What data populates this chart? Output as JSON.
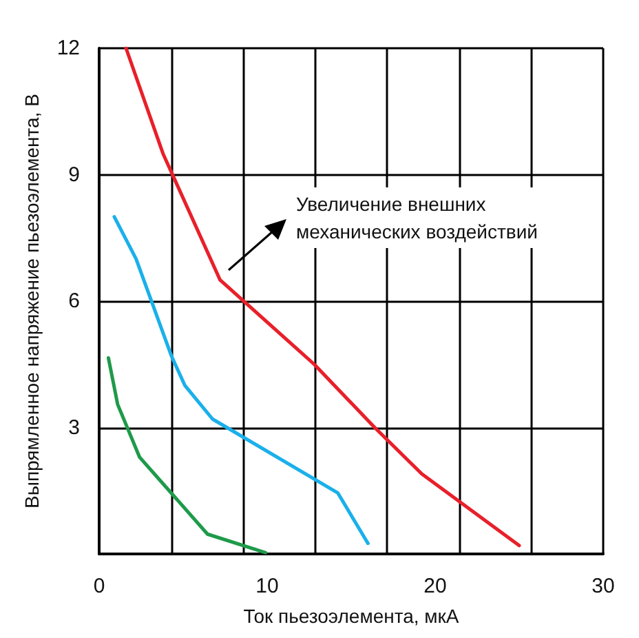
{
  "chart_data": {
    "type": "line",
    "xlabel": "Ток пьезоэлемента, мкА",
    "ylabel": "Выпрямленное напряжение пьезоэлемента, В",
    "annotations": [
      "Увеличение внешних\nмеханических воздействий"
    ],
    "xlim": [
      0,
      30
    ],
    "xticks": [
      0,
      {
        "value": 4.29,
        "label": null
      },
      {
        "value": 8.57,
        "label": null
      },
      10,
      {
        "value": 12.86,
        "label": null
      },
      {
        "value": 17.14,
        "label": null
      },
      20,
      {
        "value": 21.43,
        "label": null
      },
      {
        "value": 25.71,
        "label": null
      },
      30
    ],
    "ylim": [
      0,
      12
    ],
    "yticks": [
      3,
      6,
      9,
      12
    ],
    "grid": true,
    "marker": "none",
    "line_style": "solid",
    "series": [
      {
        "color": "#e8202a",
        "x": [
          1.6,
          3.8,
          7.2,
          12.8,
          16.4,
          19.2,
          25.0
        ],
        "values": [
          12.0,
          9.5,
          6.5,
          4.5,
          3.0,
          1.9,
          0.2
        ]
      },
      {
        "color": "#1ab0ea",
        "x": [
          0.9,
          2.2,
          4.3,
          5.1,
          6.75,
          14.2,
          16.0
        ],
        "values": [
          8.0,
          7.0,
          4.7,
          4.0,
          3.2,
          1.45,
          0.25
        ]
      },
      {
        "color": "#1e9a4a",
        "x": [
          0.55,
          1.1,
          2.4,
          6.45,
          9.9
        ],
        "values": [
          4.65,
          3.55,
          2.3,
          0.47,
          0.03
        ]
      }
    ]
  }
}
